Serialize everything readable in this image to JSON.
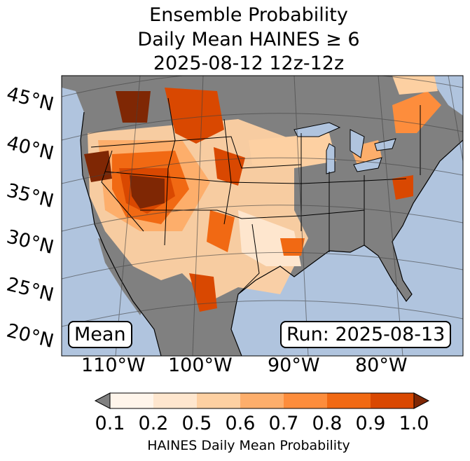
{
  "title": {
    "line1": "Ensemble Probability",
    "line2": "Daily Mean HAINES ≥ 6",
    "line3": "2025-08-12 12z-12z"
  },
  "latitude_labels": [
    "45°N",
    "40°N",
    "35°N",
    "30°N",
    "25°N",
    "20°N"
  ],
  "longitude_labels": [
    "110°W",
    "100°W",
    "90°W",
    "80°W"
  ],
  "stat_label": "Mean",
  "run_label": "Run: 2025-08-13",
  "colorbar": {
    "ticks": [
      "0.1",
      "0.2",
      "0.5",
      "0.6",
      "0.7",
      "0.8",
      "0.9",
      "1.0"
    ],
    "title": "HAINES Daily Mean Probability",
    "under_color": "#808080",
    "colors": [
      "#fff5eb",
      "#fee6ce",
      "#fdd0a2",
      "#fdae6b",
      "#fd8d3c",
      "#f16913",
      "#d94801",
      "#7f2704"
    ]
  },
  "colors": {
    "ocean": "#b0c4de",
    "land_no_prob": "#808080",
    "lakes": "#b0c4de"
  }
}
